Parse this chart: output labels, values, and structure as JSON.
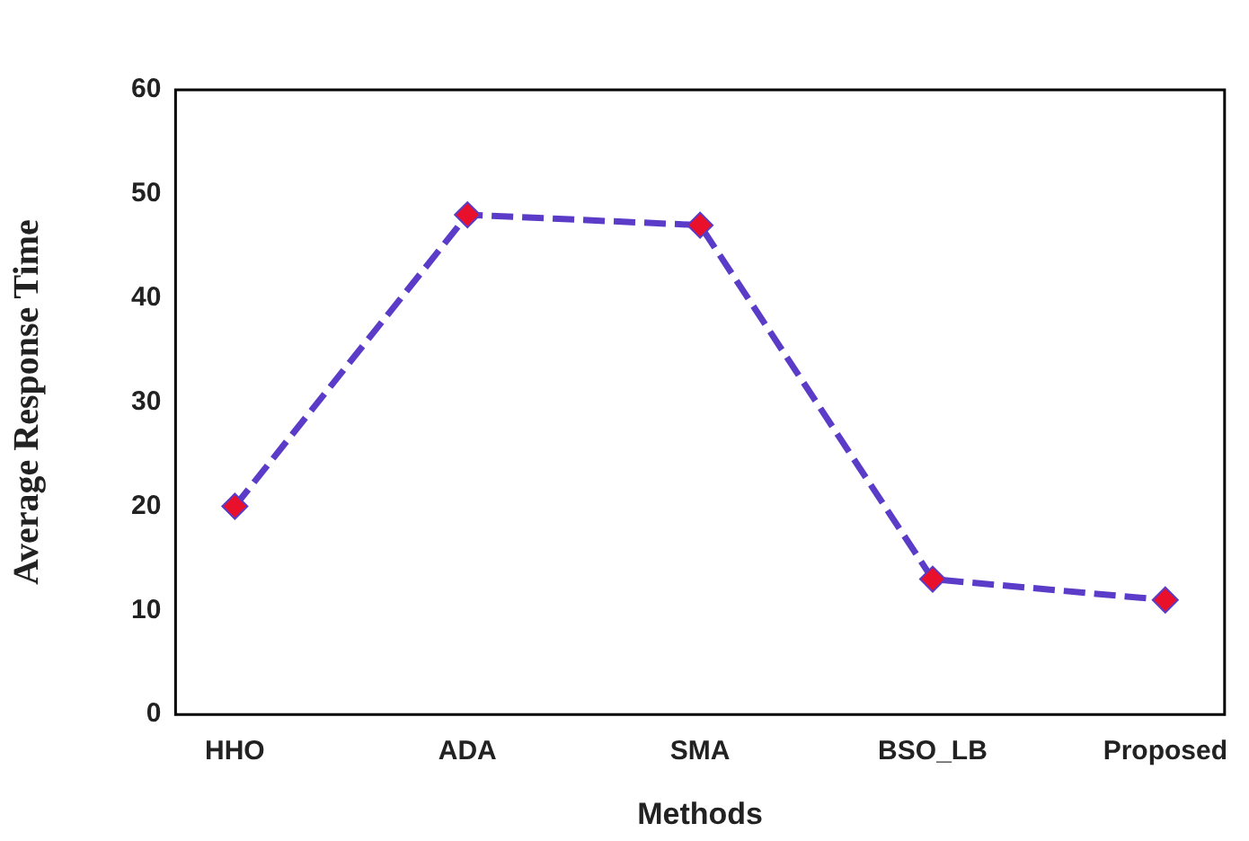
{
  "chart_data": {
    "type": "line",
    "xlabel": "Methods",
    "ylabel": "Average Response Time",
    "categories": [
      "HHO",
      "ADA",
      "SMA",
      "BSO_LB",
      "Proposed"
    ],
    "series": [
      {
        "color": "#5a3cc8",
        "values": [
          20,
          48,
          47,
          13,
          11
        ]
      }
    ],
    "ylim": [
      0,
      60
    ],
    "yticks": [
      0,
      10,
      20,
      30,
      40,
      50,
      60
    ],
    "marker": "diamond",
    "line_style": "dashed"
  }
}
